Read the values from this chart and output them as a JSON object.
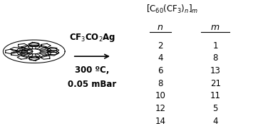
{
  "title_formula": "[C$_{60}$(CF$_3$)$_n$]$_m$",
  "reaction_label_top": "CF$_3$CO$_2$Ag",
  "reaction_label_bottom1": "300 ºC,",
  "reaction_label_bottom2": "0.05 mBar",
  "table_data": [
    [
      2,
      1
    ],
    [
      4,
      8
    ],
    [
      6,
      13
    ],
    [
      8,
      21
    ],
    [
      10,
      11
    ],
    [
      12,
      5
    ],
    [
      14,
      4
    ]
  ],
  "background_color": "#ffffff",
  "line_color": "#000000",
  "arrow_color": "#000000",
  "text_color": "#000000",
  "fullerene_color": "#000000",
  "font_size": 8.5
}
